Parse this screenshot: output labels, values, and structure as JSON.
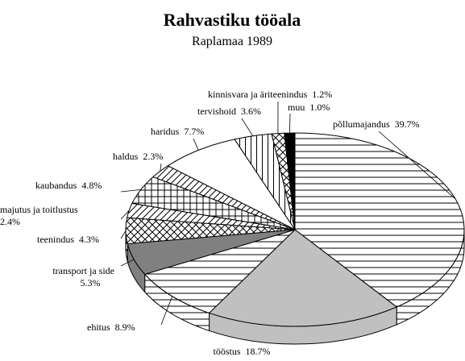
{
  "chart_data": {
    "type": "pie",
    "title": "Rahvastiku tööala",
    "subtitle": "Raplamaa 1989",
    "categories": [
      "põllumajandus",
      "tööstus",
      "ehitus",
      "transport ja side",
      "teenindus",
      "majutus ja toitlustus",
      "kaubandus",
      "haldus",
      "haridus",
      "tervishoid",
      "kinnisvara ja äriteenindus",
      "muu"
    ],
    "values": [
      39.7,
      18.7,
      8.9,
      5.3,
      4.3,
      2.4,
      4.8,
      2.3,
      7.7,
      3.6,
      1.2,
      1.0
    ],
    "value_labels": [
      "39.7%",
      "18.7%",
      "8.9%",
      "5.3%",
      "4.3%",
      "2.4%",
      "4.8%",
      "2.3%",
      "7.7%",
      "3.6%",
      "1.2%",
      "1.0%"
    ],
    "fills": [
      "url(#hl)",
      "#c0c0c0",
      "url(#hl)",
      "#808080",
      "url(#xh)",
      "url(#dg)",
      "url(#gr)",
      "url(#dg)",
      "#ffffff",
      "url(#vl)",
      "url(#xh)",
      "#000000"
    ]
  }
}
